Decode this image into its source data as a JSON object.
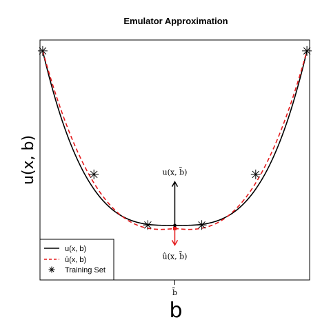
{
  "chart_data": {
    "type": "line",
    "title": "Emulator Approximation",
    "xlabel": "b",
    "ylabel": "u(x, b)",
    "xlim": [
      -1,
      1
    ],
    "ylim": [
      -0.05,
      1.05
    ],
    "xticks": [
      {
        "value": 0,
        "label": "b̃"
      }
    ],
    "grid": false,
    "legend_position": "bottom-left",
    "series": [
      {
        "name": "u(x, b)",
        "style": "solid",
        "color": "#000000"
      },
      {
        "name": "û(x, b)",
        "style": "dashed",
        "color": "#e41a1c"
      }
    ],
    "training_set": {
      "name": "Training Set",
      "x": [
        -0.98,
        -0.6,
        -0.2,
        0.2,
        0.6,
        0.98
      ],
      "y": [
        1.0,
        0.434,
        0.202,
        0.202,
        0.434,
        1.0
      ]
    },
    "annotations": {
      "true_value": {
        "label": "u(x, b̃)",
        "x": 0,
        "y_from": 0.2,
        "y_to": 0.4
      },
      "emulated_value": {
        "label": "û(x, b̃)",
        "x": 0,
        "y_from": 0.186,
        "y_to": 0.11
      }
    }
  }
}
